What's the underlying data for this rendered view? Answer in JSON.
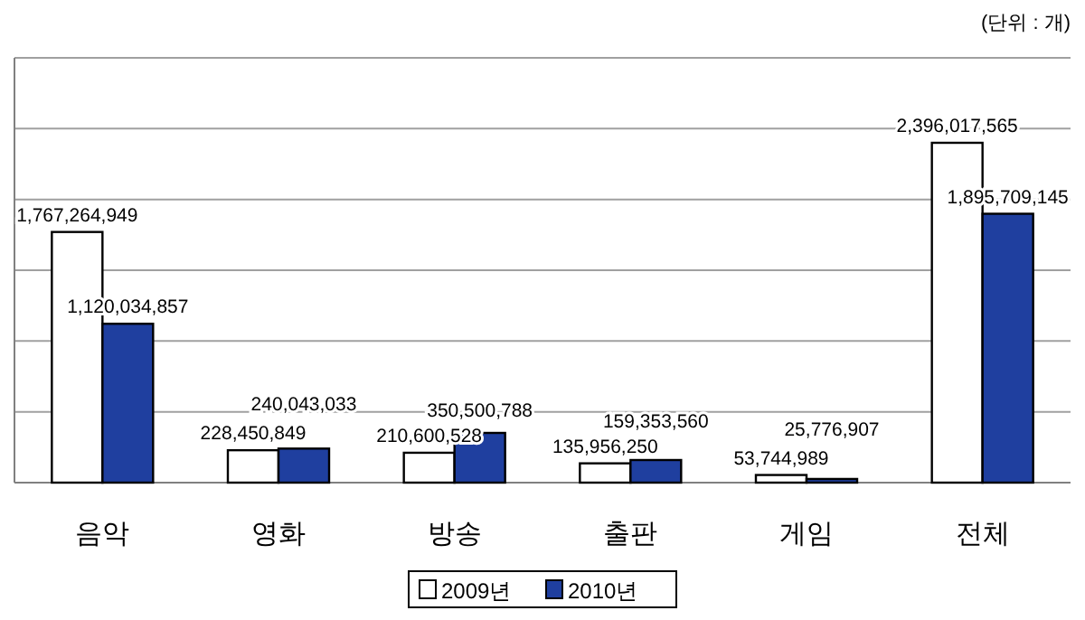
{
  "chart_data": {
    "type": "bar",
    "annotations": [
      "(단위 : 개)"
    ],
    "categories": [
      "음악",
      "영화",
      "방송",
      "출판",
      "게임",
      "전체"
    ],
    "series": [
      {
        "name": "2009년",
        "color": "#ffffff",
        "values": [
          1767264949,
          228450849,
          210600528,
          135956250,
          53744989,
          2396017565
        ],
        "value_labels": [
          "1,767,264,949",
          "228,450,849",
          "210,600,528",
          "135,956,250",
          "53,744,989",
          "2,396,017,565"
        ]
      },
      {
        "name": "2010년",
        "color": "#1f3f9f",
        "values": [
          1120034857,
          240043033,
          350500788,
          159353560,
          25776907,
          1895709145
        ],
        "value_labels": [
          "1,120,034,857",
          "240,043,033",
          "350,500,788",
          "159,353,560",
          "25,776,907",
          "1,895,709,145"
        ]
      }
    ],
    "grid": "y",
    "legend": "bottom"
  }
}
